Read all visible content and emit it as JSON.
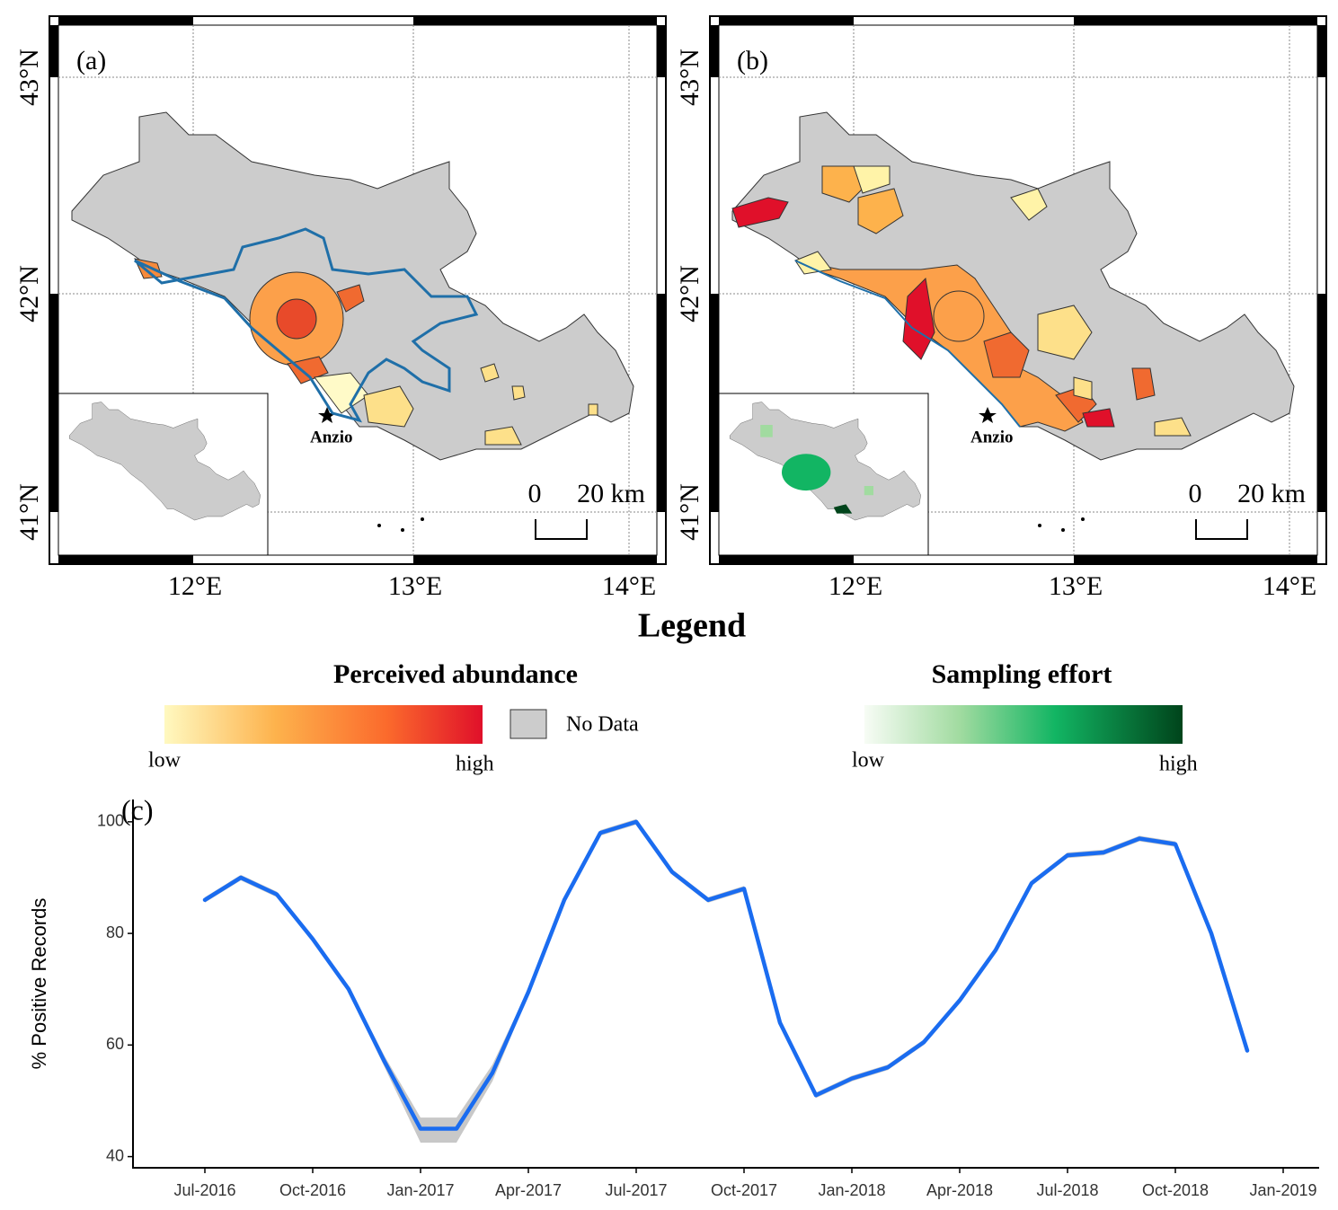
{
  "maps": [
    {
      "label": "(a)",
      "town": "Anzio",
      "scale_labels": [
        "0",
        "20 km"
      ],
      "lat_ticks": [
        "43°N",
        "42°N",
        "41°N"
      ],
      "lon_ticks": [
        "12°E",
        "13°E",
        "14°E"
      ]
    },
    {
      "label": "(b)",
      "town": "Anzio",
      "scale_labels": [
        "0",
        "20 km"
      ],
      "lat_ticks": [
        "43°N",
        "42°N",
        "41°N"
      ],
      "lon_ticks": [
        "12°E",
        "13°E",
        "14°E"
      ]
    }
  ],
  "legend": {
    "title": "Legend",
    "abundance": {
      "title": "Perceived abundance",
      "low": "low",
      "high": "high",
      "no_data": "No Data"
    },
    "effort": {
      "title": "Sampling effort",
      "low": "low",
      "high": "high"
    }
  },
  "chart_data": {
    "type": "line",
    "label": "(c)",
    "y_label": "% Positive Records",
    "x": [
      "2016-07",
      "2016-08",
      "2016-09",
      "2016-10",
      "2016-11",
      "2016-12",
      "2017-01",
      "2017-02",
      "2017-03",
      "2017-04",
      "2017-05",
      "2017-06",
      "2017-07",
      "2017-08",
      "2017-09",
      "2017-10",
      "2017-11",
      "2017-12",
      "2018-01",
      "2018-02",
      "2018-03",
      "2018-04",
      "2018-05",
      "2018-06",
      "2018-07",
      "2018-08",
      "2018-09",
      "2018-10",
      "2018-11",
      "2018-12"
    ],
    "series": [
      {
        "color": "#1a6cf0",
        "values": [
          86,
          90,
          87,
          79,
          70,
          57,
          45,
          45,
          55,
          69.5,
          86,
          98,
          100,
          91,
          86,
          88,
          64,
          51,
          54,
          56,
          60.5,
          68,
          77,
          89,
          94,
          94.5,
          97,
          96,
          80,
          59
        ],
        "upper": [
          86.5,
          90.5,
          87.5,
          79.5,
          70.5,
          58,
          47,
          47,
          56.5,
          70,
          86.5,
          98.5,
          100.5,
          91.5,
          86.5,
          88.5,
          64.5,
          51.5,
          54.5,
          56.5,
          61,
          68.5,
          77.5,
          89.5,
          94.5,
          95,
          97.5,
          96.5,
          80.5,
          59.5
        ],
        "lower": [
          85.5,
          89.5,
          86.5,
          78.5,
          69.5,
          56,
          42.5,
          42.5,
          53.5,
          69,
          85.5,
          97.5,
          99.5,
          90.5,
          85.5,
          87.5,
          63.5,
          50.5,
          53.5,
          55.5,
          60,
          67.5,
          76.5,
          88.5,
          93.5,
          94,
          96.5,
          95.5,
          79.5,
          58.5
        ],
        "band_color": "#c8c8c8"
      }
    ],
    "xlim": [
      "2016-05",
      "2019-02"
    ],
    "xticks": [
      {
        "value": "2016-07",
        "label": "Jul-2016"
      },
      {
        "value": "2016-10",
        "label": "Oct-2016"
      },
      {
        "value": "2017-01",
        "label": "Jan-2017"
      },
      {
        "value": "2017-04",
        "label": "Apr-2017"
      },
      {
        "value": "2017-07",
        "label": "Jul-2017"
      },
      {
        "value": "2017-10",
        "label": "Oct-2017"
      },
      {
        "value": "2018-01",
        "label": "Jan-2018"
      },
      {
        "value": "2018-04",
        "label": "Apr-2018"
      },
      {
        "value": "2018-07",
        "label": "Jul-2018"
      },
      {
        "value": "2018-10",
        "label": "Oct-2018"
      },
      {
        "value": "2019-01",
        "label": "Jan-2019"
      }
    ],
    "ylim": [
      38,
      104
    ],
    "yticks": [
      40,
      60,
      80,
      100
    ],
    "grid": false
  }
}
